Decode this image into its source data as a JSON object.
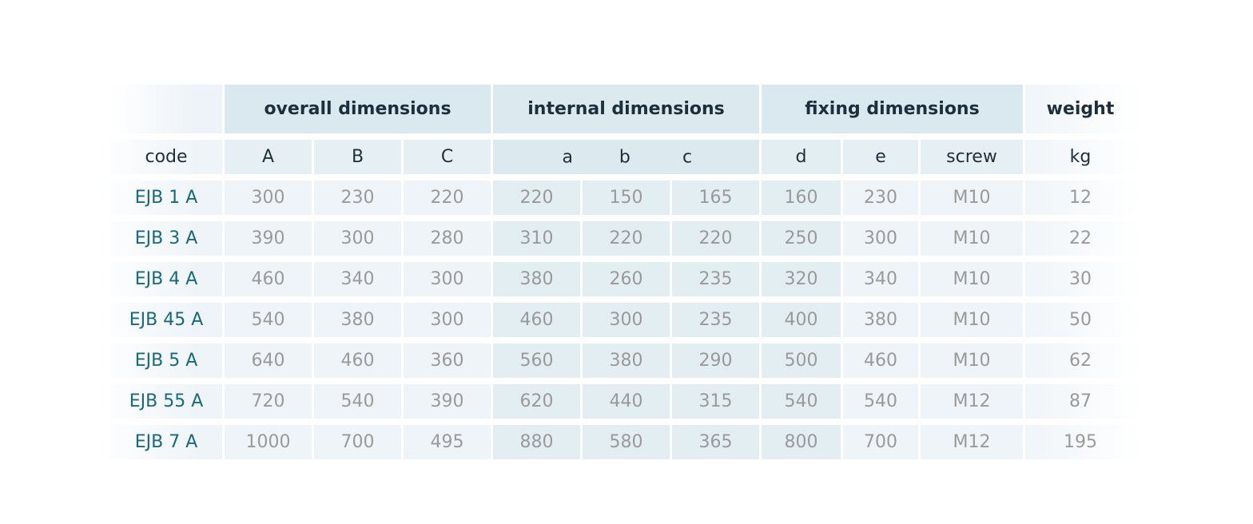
{
  "groups": {
    "overall": "overall dimensions",
    "internal": "internal dimensions",
    "fixing": "fixing dimensions",
    "weight": "weight"
  },
  "subheaders": {
    "code": "code",
    "A": "A",
    "B": "B",
    "C": "C",
    "a": "a",
    "b": "b",
    "c": "c",
    "d": "d",
    "e": "e",
    "screw": "screw",
    "kg": "kg"
  },
  "rows": [
    {
      "code": "EJB 1 A",
      "A": "300",
      "B": "230",
      "C": "220",
      "a": "220",
      "b": "150",
      "c": "165",
      "d": "160",
      "e": "230",
      "screw": "M10",
      "kg": "12"
    },
    {
      "code": "EJB 3 A",
      "A": "390",
      "B": "300",
      "C": "280",
      "a": "310",
      "b": "220",
      "c": "220",
      "d": "250",
      "e": "300",
      "screw": "M10",
      "kg": "22"
    },
    {
      "code": "EJB 4 A",
      "A": "460",
      "B": "340",
      "C": "300",
      "a": "380",
      "b": "260",
      "c": "235",
      "d": "320",
      "e": "340",
      "screw": "M10",
      "kg": "30"
    },
    {
      "code": "EJB 45 A",
      "A": "540",
      "B": "380",
      "C": "300",
      "a": "460",
      "b": "300",
      "c": "235",
      "d": "400",
      "e": "380",
      "screw": "M10",
      "kg": "50"
    },
    {
      "code": "EJB 5 A",
      "A": "640",
      "B": "460",
      "C": "360",
      "a": "560",
      "b": "380",
      "c": "290",
      "d": "500",
      "e": "460",
      "screw": "M10",
      "kg": "62"
    },
    {
      "code": "EJB 55 A",
      "A": "720",
      "B": "540",
      "C": "390",
      "a": "620",
      "b": "440",
      "c": "315",
      "d": "540",
      "e": "540",
      "screw": "M12",
      "kg": "87"
    },
    {
      "code": "EJB 7 A",
      "A": "1000",
      "B": "700",
      "C": "495",
      "a": "880",
      "b": "580",
      "c": "365",
      "d": "800",
      "e": "700",
      "screw": "M12",
      "kg": "195"
    }
  ]
}
